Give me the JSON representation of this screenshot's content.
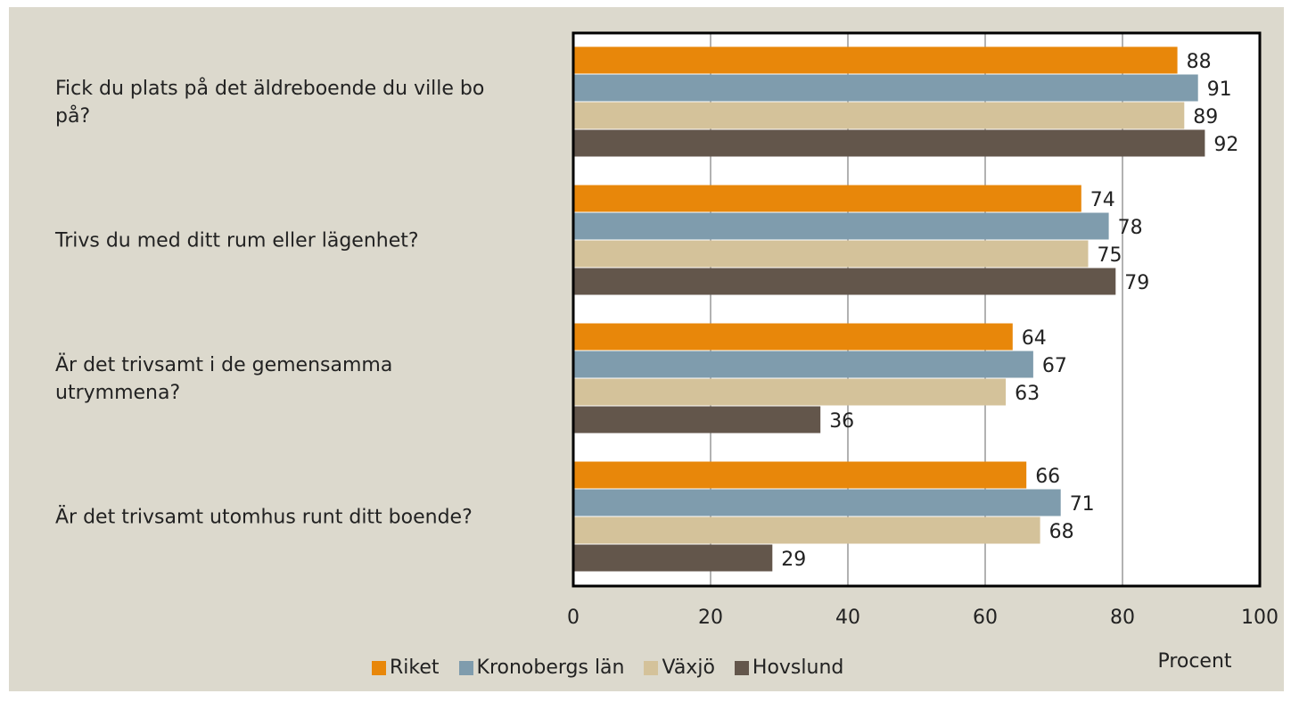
{
  "chart_data": {
    "type": "hbar",
    "categories": [
      "Fick du plats på det äldreboende du ville bo på?",
      "Trivs du med ditt rum eller lägenhet?",
      "Är det trivsamt i de gemensamma utrymmena?",
      "Är det trivsamt utomhus runt ditt boende?"
    ],
    "series": [
      {
        "name": "Riket",
        "color": "#e8870a",
        "values": [
          88,
          74,
          64,
          66
        ]
      },
      {
        "name": "Kronobergs län",
        "color": "#7f9cad",
        "values": [
          91,
          78,
          67,
          71
        ]
      },
      {
        "name": "Växjö",
        "color": "#d4c29a",
        "values": [
          89,
          75,
          63,
          68
        ]
      },
      {
        "name": "Hovslund",
        "color": "#63564b",
        "values": [
          92,
          79,
          36,
          29
        ]
      }
    ],
    "x_label": "Procent",
    "xlim": [
      0,
      100
    ],
    "xticks": [
      0,
      20,
      40,
      60,
      80,
      100
    ],
    "grid": true,
    "legend": "bottom"
  }
}
